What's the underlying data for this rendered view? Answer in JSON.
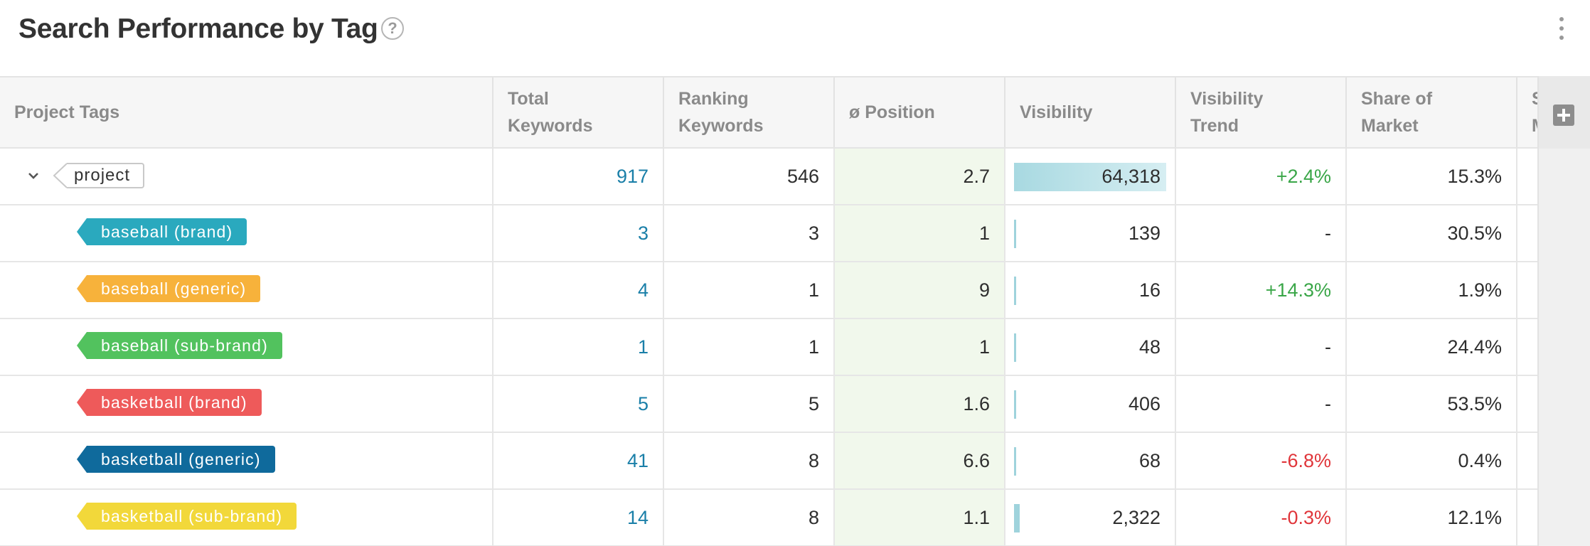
{
  "widget": {
    "title": "Search Performance by Tag",
    "help_icon": "question-circle-icon",
    "menu_icon": "kebab-menu-icon"
  },
  "columns": {
    "tags": "Project Tags",
    "total_keywords": "Total\nKeywords",
    "ranking_keywords": "Ranking\nKeywords",
    "position": "ø Position",
    "visibility": "Visibility",
    "visibility_trend": "Visibility\nTrend",
    "share_of_market": "Share of\nMarket",
    "next_partial": "S\nM"
  },
  "rows": [
    {
      "tag": "project",
      "total": "917",
      "ranking": "546",
      "position": "2.7",
      "visibility": "64,318",
      "visibility_share": 1.0,
      "trend": "+2.4%",
      "trend_dir": "pos",
      "som": "15.3%"
    },
    {
      "tag": "baseball (brand)",
      "color": "#2aa9be",
      "total": "3",
      "ranking": "3",
      "position": "1",
      "visibility": "139",
      "visibility_share": 0.002,
      "trend": "-",
      "trend_dir": "none",
      "som": "30.5%"
    },
    {
      "tag": "baseball (generic)",
      "color": "#f7b23b",
      "total": "4",
      "ranking": "1",
      "position": "9",
      "visibility": "16",
      "visibility_share": 0.0002,
      "trend": "+14.3%",
      "trend_dir": "pos",
      "som": "1.9%"
    },
    {
      "tag": "baseball (sub-brand)",
      "color": "#52c25e",
      "total": "1",
      "ranking": "1",
      "position": "1",
      "visibility": "48",
      "visibility_share": 0.0007,
      "trend": "-",
      "trend_dir": "none",
      "som": "24.4%"
    },
    {
      "tag": "basketball (brand)",
      "color": "#ee5a5a",
      "total": "5",
      "ranking": "5",
      "position": "1.6",
      "visibility": "406",
      "visibility_share": 0.006,
      "trend": "-",
      "trend_dir": "none",
      "som": "53.5%"
    },
    {
      "tag": "basketball (generic)",
      "color": "#0f6a9c",
      "total": "41",
      "ranking": "8",
      "position": "6.6",
      "visibility": "68",
      "visibility_share": 0.001,
      "trend": "-6.8%",
      "trend_dir": "neg",
      "som": "0.4%"
    },
    {
      "tag": "basketball (sub-brand)",
      "color": "#f2d83a",
      "total": "14",
      "ranking": "8",
      "position": "1.1",
      "visibility": "2,322",
      "visibility_share": 0.036,
      "trend": "-0.3%",
      "trend_dir": "neg",
      "som": "12.1%"
    }
  ],
  "colors": {
    "positive": "#3aa648",
    "negative": "#e0353a",
    "link": "#1a7fa8",
    "position_bg": "#f1f8ec"
  },
  "add_column_icon": "plus-square-icon",
  "expand_icon": "chevron-down-icon"
}
